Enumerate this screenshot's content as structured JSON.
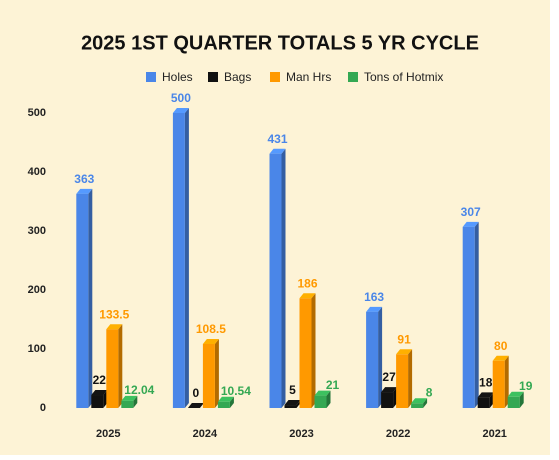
{
  "chart_data": {
    "type": "bar3d",
    "title": "2025 1ST QUARTER TOTALS 5 YR CYCLE",
    "categories": [
      "2025",
      "2024",
      "2023",
      "2022",
      "2021"
    ],
    "series": [
      {
        "name": "Holes",
        "color": "#4a86e8",
        "values": [
          363,
          500,
          431,
          163,
          307
        ]
      },
      {
        "name": "Bags",
        "color": "#111111",
        "values": [
          22,
          0,
          5,
          27,
          18
        ]
      },
      {
        "name": "Man Hrs",
        "color": "#ff9900",
        "values": [
          133.5,
          108.5,
          186,
          91,
          80
        ]
      },
      {
        "name": "Tons of Hotmix",
        "color": "#34a853",
        "values": [
          12.04,
          10.54,
          21,
          8,
          19
        ]
      }
    ],
    "ylim": [
      0,
      500
    ],
    "yticks": [
      0,
      100,
      200,
      300,
      400,
      500
    ],
    "grid": false,
    "legend": "top"
  }
}
